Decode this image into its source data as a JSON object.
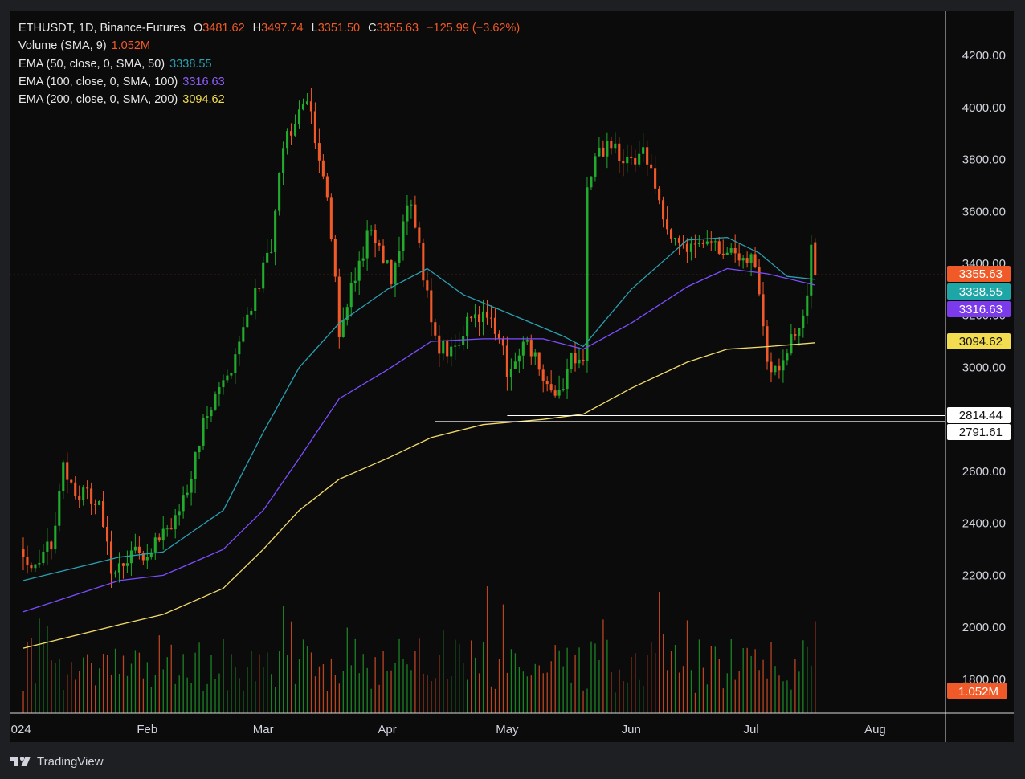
{
  "legend": {
    "symbol": "ETHUSDT, 1D, Binance-Futures",
    "open_label": "O",
    "open": "3481.62",
    "high_label": "H",
    "high": "3497.74",
    "low_label": "L",
    "low": "3351.50",
    "close_label": "C",
    "close": "3355.63",
    "change": "−125.99 (−3.62%)",
    "volume_label": "Volume (SMA, 9)",
    "volume_value": "1.052M",
    "ema50_label": "EMA (50, close, 0, SMA, 50)",
    "ema50_value": "3338.55",
    "ema100_label": "EMA (100, close, 0, SMA, 100)",
    "ema100_value": "3316.63",
    "ema200_label": "EMA (200, close, 0, SMA, 200)",
    "ema200_value": "3094.62"
  },
  "branding": {
    "name": "TradingView",
    "icon": "tradingview-logo-icon"
  },
  "colors": {
    "background": "#0b0b0c",
    "up": "#22ab2c",
    "down": "#f05a28",
    "ema50": "#2a9fb0",
    "ema100": "#7c4dff",
    "ema200": "#f2dc6b",
    "current_line": "#f05a28",
    "level_line": "#ffffff",
    "grid": "none"
  },
  "chart_data": {
    "type": "candlestick",
    "interval": "1D",
    "y_axis_ticks": [
      "1800.00",
      "2000.00",
      "2200.00",
      "2400.00",
      "2600.00",
      "2800.00",
      "3000.00",
      "3200.00",
      "3400.00",
      "3600.00",
      "3800.00",
      "4000.00",
      "4200.00"
    ],
    "y_range": [
      1670,
      4370
    ],
    "x_axis_labels": [
      "2024",
      "Feb",
      "Mar",
      "Apr",
      "May",
      "Jun",
      "Jul",
      "Aug"
    ],
    "x_range": [
      "2023-12-31",
      "2024-08-21"
    ],
    "grid": false,
    "price_labels": [
      {
        "value": "3355.63",
        "color": "#f05a28",
        "text_color": "#ffffff"
      },
      {
        "value": "3338.55",
        "color": "#1ea5a5",
        "text_color": "#ffffff"
      },
      {
        "value": "3316.63",
        "color": "#7c3aed",
        "text_color": "#ffffff"
      },
      {
        "value": "3094.62",
        "color": "#f2dc50",
        "text_color": "#111111"
      },
      {
        "value": "2814.44",
        "color": "#ffffff",
        "text_color": "#111111"
      },
      {
        "value": "2791.61",
        "color": "#ffffff",
        "text_color": "#111111"
      }
    ],
    "volume_label": {
      "value": "1.052M",
      "color": "#f05a28"
    },
    "horizontal_levels": [
      {
        "from": "2024-04-13",
        "value": 2791.61
      },
      {
        "from": "2024-05-01",
        "value": 2814.44
      }
    ],
    "current_price": 3355.63,
    "price_path": [
      [
        "2024-01-01",
        2300
      ],
      [
        "2024-01-03",
        2240
      ],
      [
        "2024-01-08",
        2310
      ],
      [
        "2024-01-11",
        2620
      ],
      [
        "2024-01-14",
        2530
      ],
      [
        "2024-01-20",
        2470
      ],
      [
        "2024-01-23",
        2230
      ],
      [
        "2024-01-26",
        2260
      ],
      [
        "2024-02-01",
        2300
      ],
      [
        "2024-02-09",
        2420
      ],
      [
        "2024-02-15",
        2780
      ],
      [
        "2024-02-21",
        2960
      ],
      [
        "2024-02-27",
        3250
      ],
      [
        "2024-03-03",
        3450
      ],
      [
        "2024-03-06",
        3850
      ],
      [
        "2024-03-12",
        4050
      ],
      [
        "2024-03-17",
        3650
      ],
      [
        "2024-03-20",
        3150
      ],
      [
        "2024-03-24",
        3350
      ],
      [
        "2024-03-28",
        3550
      ],
      [
        "2024-04-02",
        3350
      ],
      [
        "2024-04-07",
        3650
      ],
      [
        "2024-04-09",
        3450
      ],
      [
        "2024-04-13",
        3100
      ],
      [
        "2024-04-17",
        3050
      ],
      [
        "2024-04-21",
        3170
      ],
      [
        "2024-04-25",
        3200
      ],
      [
        "2024-04-30",
        3100
      ],
      [
        "2024-05-01",
        2960
      ],
      [
        "2024-05-06",
        3100
      ],
      [
        "2024-05-10",
        2980
      ],
      [
        "2024-05-14",
        2890
      ],
      [
        "2024-05-17",
        3050
      ],
      [
        "2024-05-20",
        3050
      ],
      [
        "2024-05-21",
        3680
      ],
      [
        "2024-05-23",
        3800
      ],
      [
        "2024-05-27",
        3870
      ],
      [
        "2024-05-31",
        3780
      ],
      [
        "2024-06-04",
        3850
      ],
      [
        "2024-06-07",
        3700
      ],
      [
        "2024-06-11",
        3500
      ],
      [
        "2024-06-15",
        3470
      ],
      [
        "2024-06-18",
        3500
      ],
      [
        "2024-06-22",
        3480
      ],
      [
        "2024-06-27",
        3420
      ],
      [
        "2024-07-01",
        3440
      ],
      [
        "2024-07-03",
        3300
      ],
      [
        "2024-07-05",
        3000
      ],
      [
        "2024-07-08",
        3010
      ],
      [
        "2024-07-11",
        3100
      ],
      [
        "2024-07-13",
        3150
      ],
      [
        "2024-07-15",
        3250
      ],
      [
        "2024-07-16",
        3480
      ],
      [
        "2024-07-17",
        3355.63
      ]
    ],
    "last_bar": {
      "date": "2024-07-17",
      "open": 3481.62,
      "high": 3497.74,
      "low": 3351.5,
      "close": 3355.63
    },
    "series": [
      {
        "name": "EMA (50, close, 0, SMA, 50)",
        "last": 3338.55,
        "color": "#2a9fb0",
        "values": [
          [
            "2024-01-01",
            2180
          ],
          [
            "2024-01-25",
            2270
          ],
          [
            "2024-02-05",
            2290
          ],
          [
            "2024-02-20",
            2450
          ],
          [
            "2024-03-01",
            2750
          ],
          [
            "2024-03-10",
            3000
          ],
          [
            "2024-03-20",
            3170
          ],
          [
            "2024-04-01",
            3300
          ],
          [
            "2024-04-11",
            3380
          ],
          [
            "2024-04-20",
            3280
          ],
          [
            "2024-05-01",
            3210
          ],
          [
            "2024-05-15",
            3120
          ],
          [
            "2024-05-20",
            3080
          ],
          [
            "2024-06-01",
            3300
          ],
          [
            "2024-06-15",
            3490
          ],
          [
            "2024-06-25",
            3500
          ],
          [
            "2024-07-03",
            3440
          ],
          [
            "2024-07-10",
            3350
          ],
          [
            "2024-07-17",
            3338.55
          ]
        ]
      },
      {
        "name": "EMA (100, close, 0, SMA, 100)",
        "last": 3316.63,
        "color": "#7c4dff",
        "values": [
          [
            "2024-01-01",
            2060
          ],
          [
            "2024-01-25",
            2180
          ],
          [
            "2024-02-05",
            2200
          ],
          [
            "2024-02-20",
            2300
          ],
          [
            "2024-03-01",
            2450
          ],
          [
            "2024-03-10",
            2650
          ],
          [
            "2024-03-20",
            2880
          ],
          [
            "2024-04-01",
            2990
          ],
          [
            "2024-04-12",
            3100
          ],
          [
            "2024-04-25",
            3110
          ],
          [
            "2024-05-10",
            3110
          ],
          [
            "2024-05-20",
            3070
          ],
          [
            "2024-06-01",
            3170
          ],
          [
            "2024-06-15",
            3310
          ],
          [
            "2024-06-25",
            3380
          ],
          [
            "2024-07-05",
            3360
          ],
          [
            "2024-07-17",
            3316.63
          ]
        ]
      },
      {
        "name": "EMA (200, close, 0, SMA, 200)",
        "last": 3094.62,
        "color": "#f2dc6b",
        "values": [
          [
            "2024-01-01",
            1920
          ],
          [
            "2024-01-25",
            2010
          ],
          [
            "2024-02-05",
            2050
          ],
          [
            "2024-02-20",
            2150
          ],
          [
            "2024-03-01",
            2300
          ],
          [
            "2024-03-10",
            2450
          ],
          [
            "2024-03-20",
            2570
          ],
          [
            "2024-04-01",
            2650
          ],
          [
            "2024-04-12",
            2730
          ],
          [
            "2024-04-25",
            2780
          ],
          [
            "2024-05-10",
            2800
          ],
          [
            "2024-05-20",
            2820
          ],
          [
            "2024-06-01",
            2920
          ],
          [
            "2024-06-15",
            3020
          ],
          [
            "2024-06-25",
            3070
          ],
          [
            "2024-07-05",
            3080
          ],
          [
            "2024-07-17",
            3094.62
          ]
        ]
      }
    ]
  }
}
